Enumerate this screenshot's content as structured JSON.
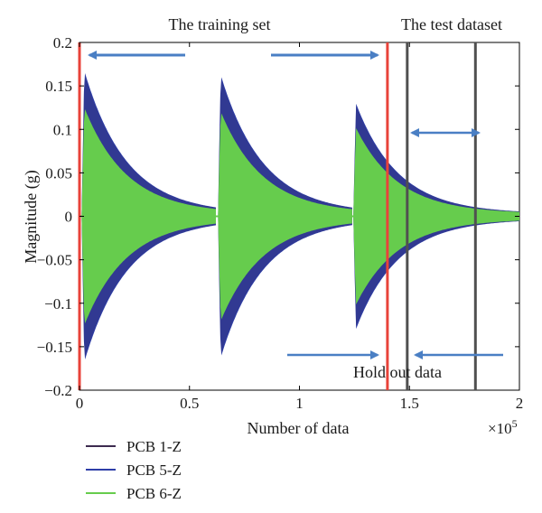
{
  "chart_data": {
    "type": "line",
    "title": "",
    "xlabel": "Number of data",
    "ylabel": "Magnitude (g)",
    "x_multiplier_label": "×10",
    "x_multiplier_exp": "5",
    "xlim": [
      0,
      2
    ],
    "ylim": [
      -0.2,
      0.2
    ],
    "xticks": [
      0,
      0.5,
      1,
      1.5,
      2
    ],
    "xtick_labels": [
      "0",
      "0.5",
      "1",
      "1.5",
      "2"
    ],
    "yticks": [
      0.2,
      0.15,
      0.1,
      0.05,
      0,
      -0.05,
      -0.1,
      -0.15,
      -0.2
    ],
    "ytick_labels": [
      "0.2",
      "0.15",
      "0.1",
      "0.05",
      "0",
      "−0.05",
      "−0.1",
      "−0.15",
      "−0.2"
    ],
    "grid": false,
    "legend_position": "bottom-left outside",
    "series": [
      {
        "name": "PCB 1-Z",
        "color": "#3d2b4f",
        "style": "decaying-oscillation"
      },
      {
        "name": "PCB 5-Z",
        "color": "#2e3ea8",
        "style": "decaying-oscillation"
      },
      {
        "name": "PCB 6-Z",
        "color": "#66cc4d",
        "style": "decaying-oscillation"
      }
    ],
    "bursts": [
      {
        "start": 0.01,
        "end": 0.62,
        "peak_blue": 0.175,
        "peak_green": 0.13
      },
      {
        "start": 0.63,
        "end": 1.24,
        "peak_blue": 0.17,
        "peak_green": 0.125
      },
      {
        "start": 1.245,
        "end": 2.0,
        "peak_blue": 0.135,
        "peak_green": 0.105
      }
    ],
    "decay_rate": 5.2,
    "vertical_lines": [
      {
        "x": 0.0,
        "color": "#e8433a"
      },
      {
        "x": 1.4,
        "color": "#e8433a"
      },
      {
        "x": 1.49,
        "color": "#505050"
      },
      {
        "x": 1.8,
        "color": "#505050"
      }
    ],
    "annotations": {
      "training_set": "The training set",
      "test_dataset": "The test dataset",
      "hold_out": "Hold out data"
    },
    "arrow_color": "#4a7fc4"
  }
}
